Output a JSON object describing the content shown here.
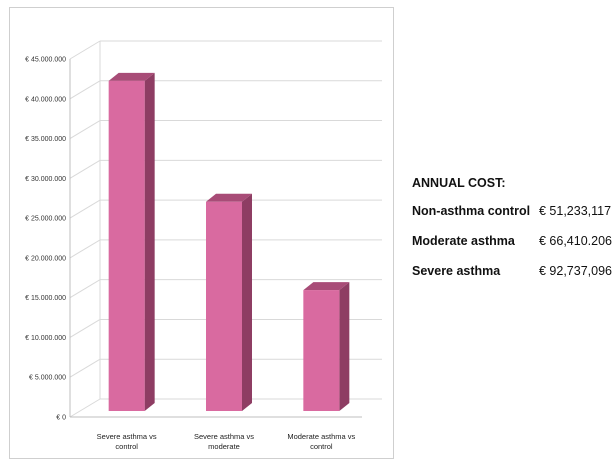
{
  "chart_data": {
    "type": "bar",
    "style": "3d-column",
    "categories": [
      "Severe asthma vs control",
      "Severe asthma vs moderate",
      "Moderate asthma vs control"
    ],
    "category_lines": [
      [
        "Severe asthma vs",
        "control"
      ],
      [
        "Severe asthma vs",
        "moderate"
      ],
      [
        "Moderate asthma vs",
        "control"
      ]
    ],
    "values": [
      41500000,
      26300000,
      15200000
    ],
    "ylim": [
      0,
      45000000
    ],
    "yticks": [
      0,
      5000000,
      10000000,
      15000000,
      20000000,
      25000000,
      30000000,
      35000000,
      40000000,
      45000000
    ],
    "ytick_labels": [
      "€ 0",
      "€ 5.000.000",
      "€ 10.000.000",
      "€ 15.000.000",
      "€ 20.000.000",
      "€ 25.000.000",
      "€ 30.000.000",
      "€ 35.000.000",
      "€ 40.000.000",
      "€ 45.000.000"
    ],
    "grid": true,
    "legend": "none",
    "bar_color": "#d96aa0",
    "bar_side_color": "#8e3d63",
    "bar_top_color": "#a84c77",
    "grid_color": "#d9d9d9"
  },
  "cost_panel": {
    "title": "ANNUAL COST:",
    "rows": [
      {
        "label": "Non-asthma control",
        "value": "€ 51,233,117"
      },
      {
        "label": "Moderate asthma",
        "value": "€ 66,410.206"
      },
      {
        "label": "Severe asthma",
        "value": "€ 92,737,096"
      }
    ]
  }
}
